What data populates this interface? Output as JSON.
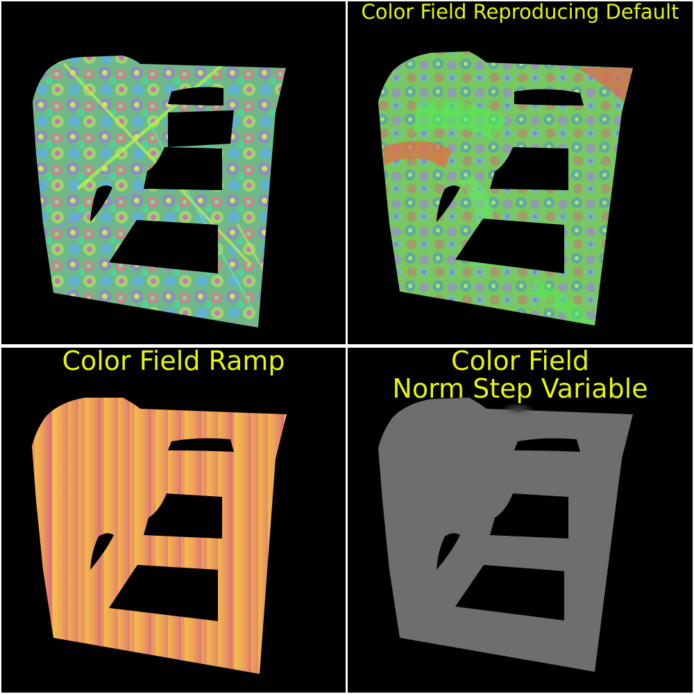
{
  "panels": {
    "top_left": {
      "caption": ""
    },
    "top_right": {
      "caption": "Color Field Reproducing Default"
    },
    "bottom_left": {
      "caption": "Color Field Ramp"
    },
    "bottom_right": {
      "caption_lines": [
        "Color Field",
        "Norm Step Variable"
      ]
    }
  },
  "colors": {
    "background": "#000000",
    "divider": "#ffffff",
    "caption": "#e6f50a",
    "ramp_light": "#f7c347",
    "ramp_dark": "#d96a7a",
    "gray_fill": "#6e6e6e"
  }
}
